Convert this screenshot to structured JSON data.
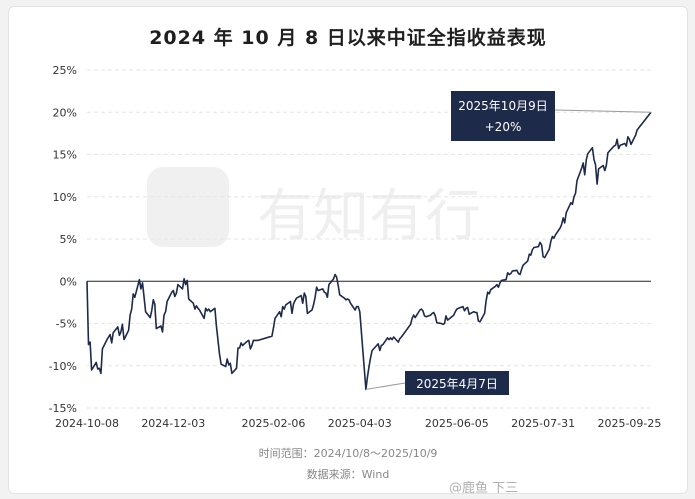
{
  "title": "2024 年 10 月 8 日以来中证全指收益表现",
  "footer": {
    "range": "时间范围：2024/10/8～2025/10/9",
    "source": "数据来源：Wind"
  },
  "watermark": {
    "brand": "有知有行",
    "tag": "@鹿鱼 下三"
  },
  "colors": {
    "line": "#1e2a4a",
    "callout_bg": "#1e2a4a",
    "callout_text": "#ffffff",
    "grid": "#e6e6e6",
    "zero_line": "#222222"
  },
  "chart_data": {
    "type": "line",
    "title": "2024 年 10 月 8 日以来中证全指收益表现",
    "xlabel": "",
    "ylabel": "",
    "x_ticks": [
      "2024-10-08",
      "2024-12-03",
      "2025-02-06",
      "2025-04-03",
      "2025-06-05",
      "2025-07-31",
      "2025-09-25"
    ],
    "y_ticks": [
      "-15%",
      "-10%",
      "-5%",
      "0%",
      "5%",
      "10%",
      "15%",
      "20%",
      "25%"
    ],
    "ylim": [
      -15,
      25
    ],
    "xlim": [
      "2024-10-08",
      "2025-10-09"
    ],
    "grid": "horizontal",
    "series": [
      {
        "points": [
          [
            "2024-10-08",
            0
          ],
          [
            "2024-10-09",
            -7.5
          ],
          [
            "2024-10-10",
            -7.2
          ],
          [
            "2024-10-11",
            -10.5
          ],
          [
            "2024-10-14",
            -9.6
          ],
          [
            "2024-10-15",
            -10.4
          ],
          [
            "2024-10-16",
            -10.3
          ],
          [
            "2024-10-17",
            -10.9
          ],
          [
            "2024-10-18",
            -8.0
          ],
          [
            "2024-10-21",
            -6.9
          ],
          [
            "2024-10-22",
            -6.6
          ],
          [
            "2024-10-23",
            -6.3
          ],
          [
            "2024-10-24",
            -7.3
          ],
          [
            "2024-10-25",
            -6.1
          ],
          [
            "2024-10-28",
            -5.4
          ],
          [
            "2024-10-29",
            -6.4
          ],
          [
            "2024-10-30",
            -6.0
          ],
          [
            "2024-10-31",
            -5.1
          ],
          [
            "2024-11-01",
            -6.9
          ],
          [
            "2024-11-04",
            -5.8
          ],
          [
            "2024-11-05",
            -4.0
          ],
          [
            "2024-11-06",
            -3.3
          ],
          [
            "2024-11-07",
            -1.5
          ],
          [
            "2024-11-08",
            -1.9
          ],
          [
            "2024-11-11",
            0.2
          ],
          [
            "2024-11-12",
            -0.9
          ],
          [
            "2024-11-13",
            -0.2
          ],
          [
            "2024-11-14",
            -1.8
          ],
          [
            "2024-11-15",
            -3.6
          ],
          [
            "2024-11-18",
            -4.3
          ],
          [
            "2024-11-19",
            -3.5
          ],
          [
            "2024-11-20",
            -2.2
          ],
          [
            "2024-11-21",
            -2.7
          ],
          [
            "2024-11-22",
            -5.6
          ],
          [
            "2024-11-25",
            -5.3
          ],
          [
            "2024-11-26",
            -6.0
          ],
          [
            "2024-11-27",
            -4.0
          ],
          [
            "2024-11-28",
            -3.6
          ],
          [
            "2024-11-29",
            -2.4
          ],
          [
            "2024-12-02",
            -1.3
          ],
          [
            "2024-12-03",
            -1.1
          ],
          [
            "2024-12-04",
            -1.8
          ],
          [
            "2024-12-05",
            -1.4
          ],
          [
            "2024-12-06",
            -0.4
          ],
          [
            "2024-12-09",
            -0.9
          ],
          [
            "2024-12-10",
            0.3
          ],
          [
            "2024-12-11",
            -0.4
          ],
          [
            "2024-12-12",
            0.1
          ],
          [
            "2024-12-13",
            -2.1
          ],
          [
            "2024-12-16",
            -2.6
          ],
          [
            "2024-12-17",
            -3.3
          ],
          [
            "2024-12-18",
            -2.9
          ],
          [
            "2024-12-19",
            -3.2
          ],
          [
            "2024-12-20",
            -3.4
          ],
          [
            "2024-12-23",
            -4.4
          ],
          [
            "2024-12-24",
            -3.2
          ],
          [
            "2024-12-25",
            -3.5
          ],
          [
            "2024-12-26",
            -3.3
          ],
          [
            "2024-12-27",
            -3.6
          ],
          [
            "2024-12-30",
            -3.2
          ],
          [
            "2024-12-31",
            -5.3
          ],
          [
            "2025-01-02",
            -8.6
          ],
          [
            "2025-01-03",
            -9.8
          ],
          [
            "2025-01-06",
            -10.1
          ],
          [
            "2025-01-07",
            -9.2
          ],
          [
            "2025-01-08",
            -9.9
          ],
          [
            "2025-01-09",
            -9.7
          ],
          [
            "2025-01-10",
            -10.9
          ],
          [
            "2025-01-13",
            -10.3
          ],
          [
            "2025-01-14",
            -7.9
          ],
          [
            "2025-01-15",
            -7.9
          ],
          [
            "2025-01-16",
            -7.3
          ],
          [
            "2025-01-17",
            -7.6
          ],
          [
            "2025-01-20",
            -7.1
          ],
          [
            "2025-01-21",
            -7.0
          ],
          [
            "2025-01-22",
            -8.0
          ],
          [
            "2025-01-23",
            -7.6
          ],
          [
            "2025-01-24",
            -7.0
          ],
          [
            "2025-01-27",
            -7.0
          ],
          [
            "2025-02-05",
            -6.5
          ],
          [
            "2025-02-06",
            -5.5
          ],
          [
            "2025-02-07",
            -4.4
          ],
          [
            "2025-02-10",
            -3.6
          ],
          [
            "2025-02-11",
            -4.2
          ],
          [
            "2025-02-12",
            -3.0
          ],
          [
            "2025-02-13",
            -3.3
          ],
          [
            "2025-02-14",
            -2.8
          ],
          [
            "2025-02-17",
            -2.4
          ],
          [
            "2025-02-18",
            -3.8
          ],
          [
            "2025-02-19",
            -2.7
          ],
          [
            "2025-02-20",
            -2.3
          ],
          [
            "2025-02-21",
            -2.0
          ],
          [
            "2025-02-24",
            -1.7
          ],
          [
            "2025-02-25",
            -2.6
          ],
          [
            "2025-02-26",
            -1.4
          ],
          [
            "2025-02-27",
            -1.8
          ],
          [
            "2025-02-28",
            -3.8
          ],
          [
            "2025-03-03",
            -3.4
          ],
          [
            "2025-03-04",
            -2.8
          ],
          [
            "2025-03-05",
            -1.9
          ],
          [
            "2025-03-06",
            -0.7
          ],
          [
            "2025-03-07",
            -1.1
          ],
          [
            "2025-03-10",
            -0.9
          ],
          [
            "2025-03-11",
            -1.3
          ],
          [
            "2025-03-12",
            -1.4
          ],
          [
            "2025-03-13",
            -1.9
          ],
          [
            "2025-03-14",
            -0.4
          ],
          [
            "2025-03-17",
            0.3
          ],
          [
            "2025-03-18",
            0.8
          ],
          [
            "2025-03-19",
            0.5
          ],
          [
            "2025-03-20",
            -0.5
          ],
          [
            "2025-03-21",
            -1.6
          ],
          [
            "2025-03-24",
            -2.0
          ],
          [
            "2025-03-25",
            -2.2
          ],
          [
            "2025-03-26",
            -2.1
          ],
          [
            "2025-03-27",
            -2.2
          ],
          [
            "2025-03-28",
            -2.6
          ],
          [
            "2025-03-31",
            -3.4
          ],
          [
            "2025-04-01",
            -3.0
          ],
          [
            "2025-04-02",
            -3.0
          ],
          [
            "2025-04-03",
            -3.6
          ],
          [
            "2025-04-07",
            -12.8
          ],
          [
            "2025-04-08",
            -11.3
          ],
          [
            "2025-04-09",
            -10.1
          ],
          [
            "2025-04-10",
            -9.1
          ],
          [
            "2025-04-11",
            -8.2
          ],
          [
            "2025-04-14",
            -7.6
          ],
          [
            "2025-04-15",
            -7.4
          ],
          [
            "2025-04-16",
            -8.2
          ],
          [
            "2025-04-17",
            -7.6
          ],
          [
            "2025-04-18",
            -7.5
          ],
          [
            "2025-04-21",
            -6.7
          ],
          [
            "2025-04-22",
            -6.9
          ],
          [
            "2025-04-23",
            -6.7
          ],
          [
            "2025-04-24",
            -6.9
          ],
          [
            "2025-04-25",
            -6.6
          ],
          [
            "2025-04-28",
            -7.2
          ],
          [
            "2025-04-29",
            -6.8
          ],
          [
            "2025-04-30",
            -6.6
          ],
          [
            "2025-05-06",
            -5.1
          ],
          [
            "2025-05-07",
            -4.4
          ],
          [
            "2025-05-08",
            -4.0
          ],
          [
            "2025-05-09",
            -4.3
          ],
          [
            "2025-05-12",
            -3.4
          ],
          [
            "2025-05-13",
            -3.3
          ],
          [
            "2025-05-14",
            -3.5
          ],
          [
            "2025-05-15",
            -4.1
          ],
          [
            "2025-05-16",
            -4.2
          ],
          [
            "2025-05-19",
            -4.0
          ],
          [
            "2025-05-20",
            -3.8
          ],
          [
            "2025-05-21",
            -3.7
          ],
          [
            "2025-05-22",
            -4.1
          ],
          [
            "2025-05-23",
            -4.9
          ],
          [
            "2025-05-26",
            -5.0
          ],
          [
            "2025-05-27",
            -5.1
          ],
          [
            "2025-05-28",
            -5.0
          ],
          [
            "2025-05-29",
            -4.1
          ],
          [
            "2025-05-30",
            -4.6
          ],
          [
            "2025-06-03",
            -4.0
          ],
          [
            "2025-06-04",
            -3.6
          ],
          [
            "2025-06-05",
            -3.3
          ],
          [
            "2025-06-06",
            -3.2
          ],
          [
            "2025-06-09",
            -3.0
          ],
          [
            "2025-06-10",
            -3.5
          ],
          [
            "2025-06-11",
            -3.2
          ],
          [
            "2025-06-12",
            -3.1
          ],
          [
            "2025-06-13",
            -3.9
          ],
          [
            "2025-06-16",
            -3.6
          ],
          [
            "2025-06-17",
            -3.7
          ],
          [
            "2025-06-18",
            -3.7
          ],
          [
            "2025-06-19",
            -4.7
          ],
          [
            "2025-06-20",
            -4.8
          ],
          [
            "2025-06-23",
            -3.8
          ],
          [
            "2025-06-24",
            -2.3
          ],
          [
            "2025-06-25",
            -1.3
          ],
          [
            "2025-06-26",
            -1.5
          ],
          [
            "2025-06-27",
            -1.0
          ],
          [
            "2025-06-30",
            -0.6
          ],
          [
            "2025-07-01",
            -0.4
          ],
          [
            "2025-07-02",
            -0.7
          ],
          [
            "2025-07-03",
            -0.2
          ],
          [
            "2025-07-04",
            0.1
          ],
          [
            "2025-07-07",
            0.2
          ],
          [
            "2025-07-08",
            1.0
          ],
          [
            "2025-07-09",
            0.8
          ],
          [
            "2025-07-10",
            0.9
          ],
          [
            "2025-07-11",
            1.2
          ],
          [
            "2025-07-14",
            1.3
          ],
          [
            "2025-07-15",
            0.9
          ],
          [
            "2025-07-16",
            0.8
          ],
          [
            "2025-07-17",
            1.4
          ],
          [
            "2025-07-18",
            1.9
          ],
          [
            "2025-07-21",
            2.4
          ],
          [
            "2025-07-22",
            3.2
          ],
          [
            "2025-07-23",
            3.1
          ],
          [
            "2025-07-24",
            3.7
          ],
          [
            "2025-07-25",
            4.0
          ],
          [
            "2025-07-28",
            4.1
          ],
          [
            "2025-07-29",
            4.6
          ],
          [
            "2025-07-30",
            4.3
          ],
          [
            "2025-07-31",
            2.9
          ],
          [
            "2025-08-01",
            2.8
          ],
          [
            "2025-08-04",
            3.8
          ],
          [
            "2025-08-05",
            4.7
          ],
          [
            "2025-08-06",
            5.3
          ],
          [
            "2025-08-07",
            5.1
          ],
          [
            "2025-08-08",
            5.5
          ],
          [
            "2025-08-11",
            6.3
          ],
          [
            "2025-08-12",
            6.7
          ],
          [
            "2025-08-13",
            7.5
          ],
          [
            "2025-08-14",
            6.9
          ],
          [
            "2025-08-15",
            8.1
          ],
          [
            "2025-08-18",
            9.3
          ],
          [
            "2025-08-19",
            9.1
          ],
          [
            "2025-08-20",
            10.0
          ],
          [
            "2025-08-21",
            10.4
          ],
          [
            "2025-08-22",
            11.9
          ],
          [
            "2025-08-25",
            13.4
          ],
          [
            "2025-08-26",
            14.0
          ],
          [
            "2025-08-27",
            12.6
          ],
          [
            "2025-08-28",
            14.4
          ],
          [
            "2025-08-29",
            15.1
          ],
          [
            "2025-09-01",
            15.8
          ],
          [
            "2025-09-02",
            14.4
          ],
          [
            "2025-09-03",
            13.8
          ],
          [
            "2025-09-04",
            11.5
          ],
          [
            "2025-09-05",
            13.3
          ],
          [
            "2025-09-08",
            13.7
          ],
          [
            "2025-09-09",
            13.1
          ],
          [
            "2025-09-10",
            13.7
          ],
          [
            "2025-09-11",
            15.2
          ],
          [
            "2025-09-12",
            15.4
          ],
          [
            "2025-09-15",
            16.0
          ],
          [
            "2025-09-16",
            16.1
          ],
          [
            "2025-09-17",
            16.8
          ],
          [
            "2025-09-18",
            15.7
          ],
          [
            "2025-09-19",
            16.1
          ],
          [
            "2025-09-22",
            16.3
          ],
          [
            "2025-09-23",
            16.0
          ],
          [
            "2025-09-24",
            17.1
          ],
          [
            "2025-09-25",
            16.8
          ],
          [
            "2025-09-26",
            16.2
          ],
          [
            "2025-09-29",
            17.3
          ],
          [
            "2025-09-30",
            17.9
          ],
          [
            "2025-10-09",
            20.0
          ]
        ]
      }
    ],
    "annotations": [
      {
        "date": "2025-10-09",
        "value": 20,
        "lines": [
          "2025年10月9日",
          "+20%"
        ]
      },
      {
        "date": "2025-04-07",
        "value": -12.8,
        "lines": [
          "2025年4月7日"
        ]
      }
    ]
  }
}
